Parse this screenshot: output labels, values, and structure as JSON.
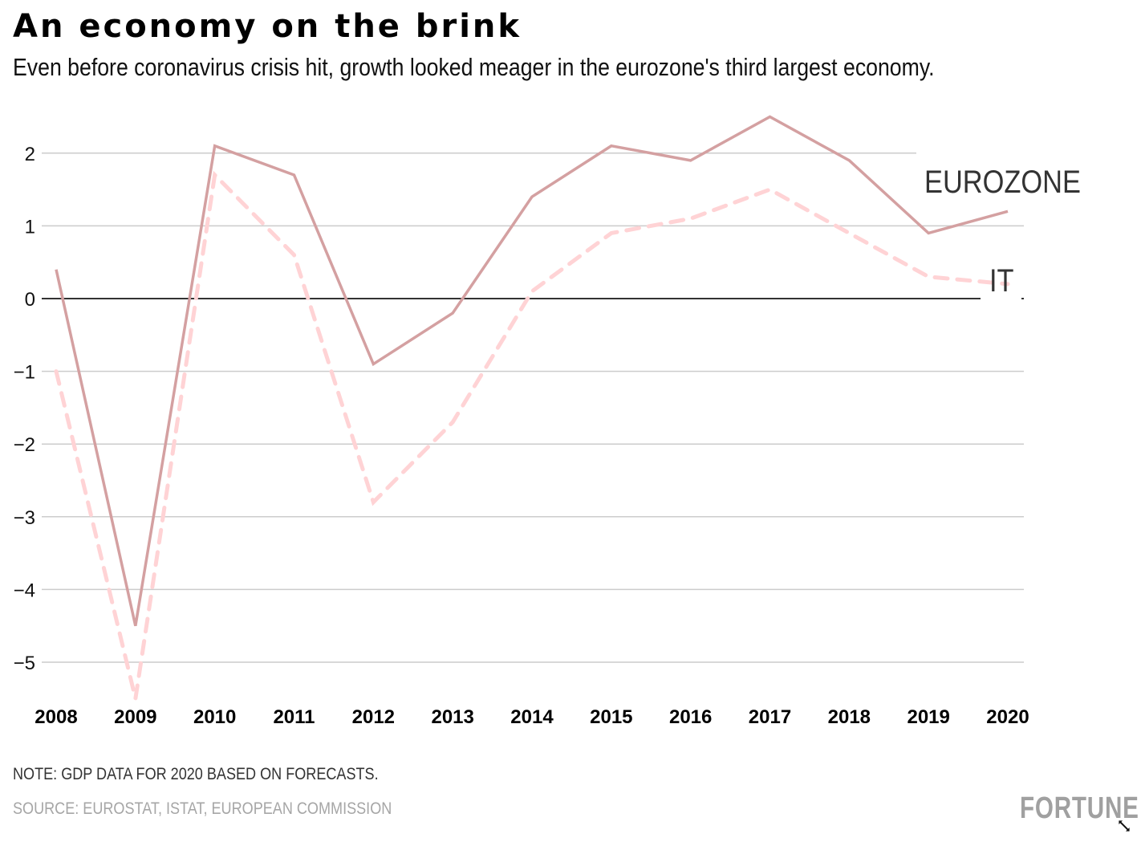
{
  "header": {
    "title": "An economy on the brink",
    "subtitle": "Even before coronavirus crisis hit, growth looked meager in the eurozone's third largest economy."
  },
  "footer": {
    "note": "NOTE: GDP DATA FOR 2020 BASED ON FORECASTS.",
    "source": "SOURCE: EUROSTAT, ISTAT, EUROPEAN COMMISSION",
    "logo": "FORTUNE"
  },
  "colors": {
    "eurozone": "#d4a0a1",
    "italy": "#ffd3d5",
    "gridline": "#cccccc",
    "zero_line": "#333333",
    "label_text": "#333333"
  },
  "chart_data": {
    "type": "line",
    "title": "An economy on the brink",
    "subtitle": "Even before coronavirus crisis hit, growth looked meager in the eurozone's third largest economy.",
    "xlabel": "",
    "ylabel": "",
    "x": [
      "2008",
      "2009",
      "2010",
      "2011",
      "2012",
      "2013",
      "2014",
      "2015",
      "2016",
      "2017",
      "2018",
      "2019",
      "2020"
    ],
    "ylim": [
      -5.5,
      2.6
    ],
    "yticks": [
      2,
      1,
      0,
      -1,
      -2,
      -3,
      -4,
      -5
    ],
    "ytick_labels": [
      "2",
      "1",
      "0",
      "−1",
      "−2",
      "−3",
      "−4",
      "−5"
    ],
    "grid": true,
    "legend": "inline-right",
    "series": [
      {
        "name": "EUROZONE",
        "style": "solid",
        "values": [
          0.4,
          -4.5,
          2.1,
          1.7,
          -0.9,
          -0.2,
          1.4,
          2.1,
          1.9,
          2.5,
          1.9,
          0.9,
          1.2
        ]
      },
      {
        "name": "IT",
        "style": "dashed",
        "values": [
          -1.0,
          -5.5,
          1.7,
          0.6,
          -2.8,
          -1.7,
          0.1,
          0.9,
          1.1,
          1.5,
          0.9,
          0.3,
          0.2
        ]
      }
    ],
    "annotations": [
      "NOTE: GDP DATA FOR 2020 BASED ON FORECASTS.",
      "SOURCE: EUROSTAT, ISTAT, EUROPEAN COMMISSION"
    ]
  }
}
